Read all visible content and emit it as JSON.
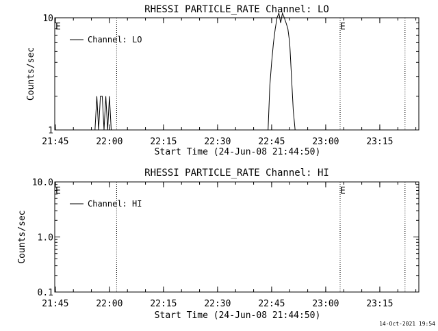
{
  "footer": {
    "timestamp": "14-Oct-2021 19:54"
  },
  "chart_data": [
    {
      "type": "line",
      "title": "RHESSI PARTICLE_RATE Channel: LO",
      "xlabel": "Start Time (24-Jun-08 21:44:50)",
      "ylabel": "Counts/sec",
      "yscale": "log",
      "xlim": [
        "21:44:50",
        "23:25:50"
      ],
      "ylim": [
        1,
        10
      ],
      "x_tick_labels": [
        "21:45",
        "22:00",
        "22:15",
        "22:30",
        "22:45",
        "23:00",
        "23:15"
      ],
      "y_tick_labels": [
        "1",
        "10"
      ],
      "legend": {
        "entries": [
          "Channel: LO"
        ],
        "placement": "top-left"
      },
      "annotations": [
        {
          "text": "E",
          "x": "21:44:50"
        },
        {
          "text": "E",
          "x": "23:04:00"
        }
      ],
      "vertical_lines": [
        "22:02:00",
        "23:04:00",
        "23:22:00"
      ],
      "series": [
        {
          "name": "Channel: LO",
          "x": [
            "21:56:00",
            "21:56:30",
            "21:57:00",
            "21:57:30",
            "21:58:00",
            "21:58:30",
            "21:59:00",
            "21:59:30",
            "22:00:00",
            "22:00:30",
            "22:01:00",
            "22:44:00",
            "22:44:30",
            "22:45:00",
            "22:45:30",
            "22:46:00",
            "22:46:30",
            "22:47:00",
            "22:47:30",
            "22:48:00",
            "22:48:30",
            "22:49:00",
            "22:49:30",
            "22:50:00",
            "22:50:30",
            "22:51:00",
            "22:51:30",
            "22:52:00"
          ],
          "y": [
            1,
            2,
            1,
            2,
            2,
            1,
            2,
            1,
            2,
            1,
            1,
            1,
            2.5,
            4,
            6,
            8,
            10,
            11,
            9,
            11,
            10,
            9,
            8,
            6,
            3,
            1.5,
            1,
            1
          ]
        }
      ]
    },
    {
      "type": "line",
      "title": "RHESSI PARTICLE_RATE Channel: HI",
      "xlabel": "Start Time (24-Jun-08 21:44:50)",
      "ylabel": "Counts/sec",
      "yscale": "log",
      "xlim": [
        "21:44:50",
        "23:25:50"
      ],
      "ylim": [
        0.1,
        10
      ],
      "x_tick_labels": [
        "21:45",
        "22:00",
        "22:15",
        "22:30",
        "22:45",
        "23:00",
        "23:15"
      ],
      "y_tick_labels": [
        "0.1",
        "1.0",
        "10.0"
      ],
      "legend": {
        "entries": [
          "Channel: HI"
        ],
        "placement": "top-left"
      },
      "annotations": [
        {
          "text": "E",
          "x": "21:44:50"
        },
        {
          "text": "E",
          "x": "23:04:00"
        }
      ],
      "vertical_lines": [
        "22:02:00",
        "23:04:00",
        "23:22:00"
      ],
      "series": [
        {
          "name": "Channel: HI",
          "x": [],
          "y": []
        }
      ]
    }
  ]
}
